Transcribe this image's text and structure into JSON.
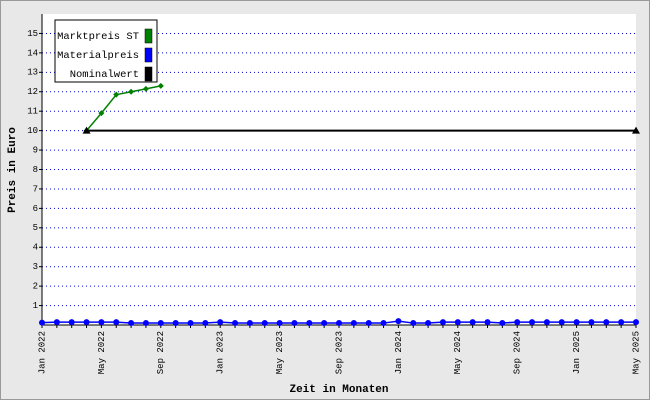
{
  "chart_data": {
    "type": "line",
    "x_label": "Zeit in Monaten",
    "y_label": "Preis in Euro",
    "categories": [
      "Jan 2022",
      null,
      null,
      null,
      "May 2022",
      null,
      null,
      null,
      "Sep 2022",
      null,
      null,
      null,
      "Jan 2023",
      null,
      null,
      null,
      "May 2023",
      null,
      null,
      null,
      "Sep 2023",
      null,
      null,
      null,
      "Jan 2024",
      null,
      null,
      null,
      "May 2024",
      null,
      null,
      null,
      "Sep 2024",
      null,
      null,
      null,
      "Jan 2025",
      null,
      null,
      null,
      "May 2025"
    ],
    "ylim": [
      0,
      16
    ],
    "yticks": [
      1,
      2,
      3,
      4,
      5,
      6,
      7,
      8,
      9,
      10,
      11,
      12,
      13,
      14,
      15
    ],
    "grid": true,
    "legend": "upper left",
    "series": [
      {
        "name": "Marktpreis ST",
        "color": "#008000",
        "marker": "diamond",
        "values": [
          null,
          null,
          null,
          10,
          10.9,
          11.85,
          12.0,
          12.15,
          12.3,
          null,
          null,
          null,
          null,
          null,
          null,
          null,
          null,
          null,
          null,
          null,
          null,
          null,
          null,
          null,
          null,
          null,
          null,
          null,
          null,
          null,
          null,
          null,
          null,
          null,
          null,
          null,
          null,
          null,
          null,
          null,
          null
        ]
      },
      {
        "name": "Materialpreis",
        "color": "#0000ff",
        "marker": "circle",
        "values": [
          0.12,
          0.15,
          0.15,
          0.15,
          0.15,
          0.15,
          0.1,
          0.1,
          0.1,
          0.1,
          0.1,
          0.1,
          0.15,
          0.1,
          0.1,
          0.1,
          0.1,
          0.1,
          0.1,
          0.1,
          0.1,
          0.1,
          0.1,
          0.1,
          0.2,
          0.1,
          0.1,
          0.15,
          0.15,
          0.15,
          0.15,
          0.1,
          0.15,
          0.15,
          0.15,
          0.15,
          0.15,
          0.15,
          0.15,
          0.15,
          0.15
        ]
      },
      {
        "name": "Nominalwert",
        "color": "#000000",
        "marker": "triangle",
        "values": [
          null,
          null,
          null,
          10,
          10,
          10,
          10,
          10,
          10,
          10,
          10,
          10,
          10,
          10,
          10,
          10,
          10,
          10,
          10,
          10,
          10,
          10,
          10,
          10,
          10,
          10,
          10,
          10,
          10,
          10,
          10,
          10,
          10,
          10,
          10,
          10,
          10,
          10,
          10,
          10,
          10
        ]
      }
    ]
  }
}
